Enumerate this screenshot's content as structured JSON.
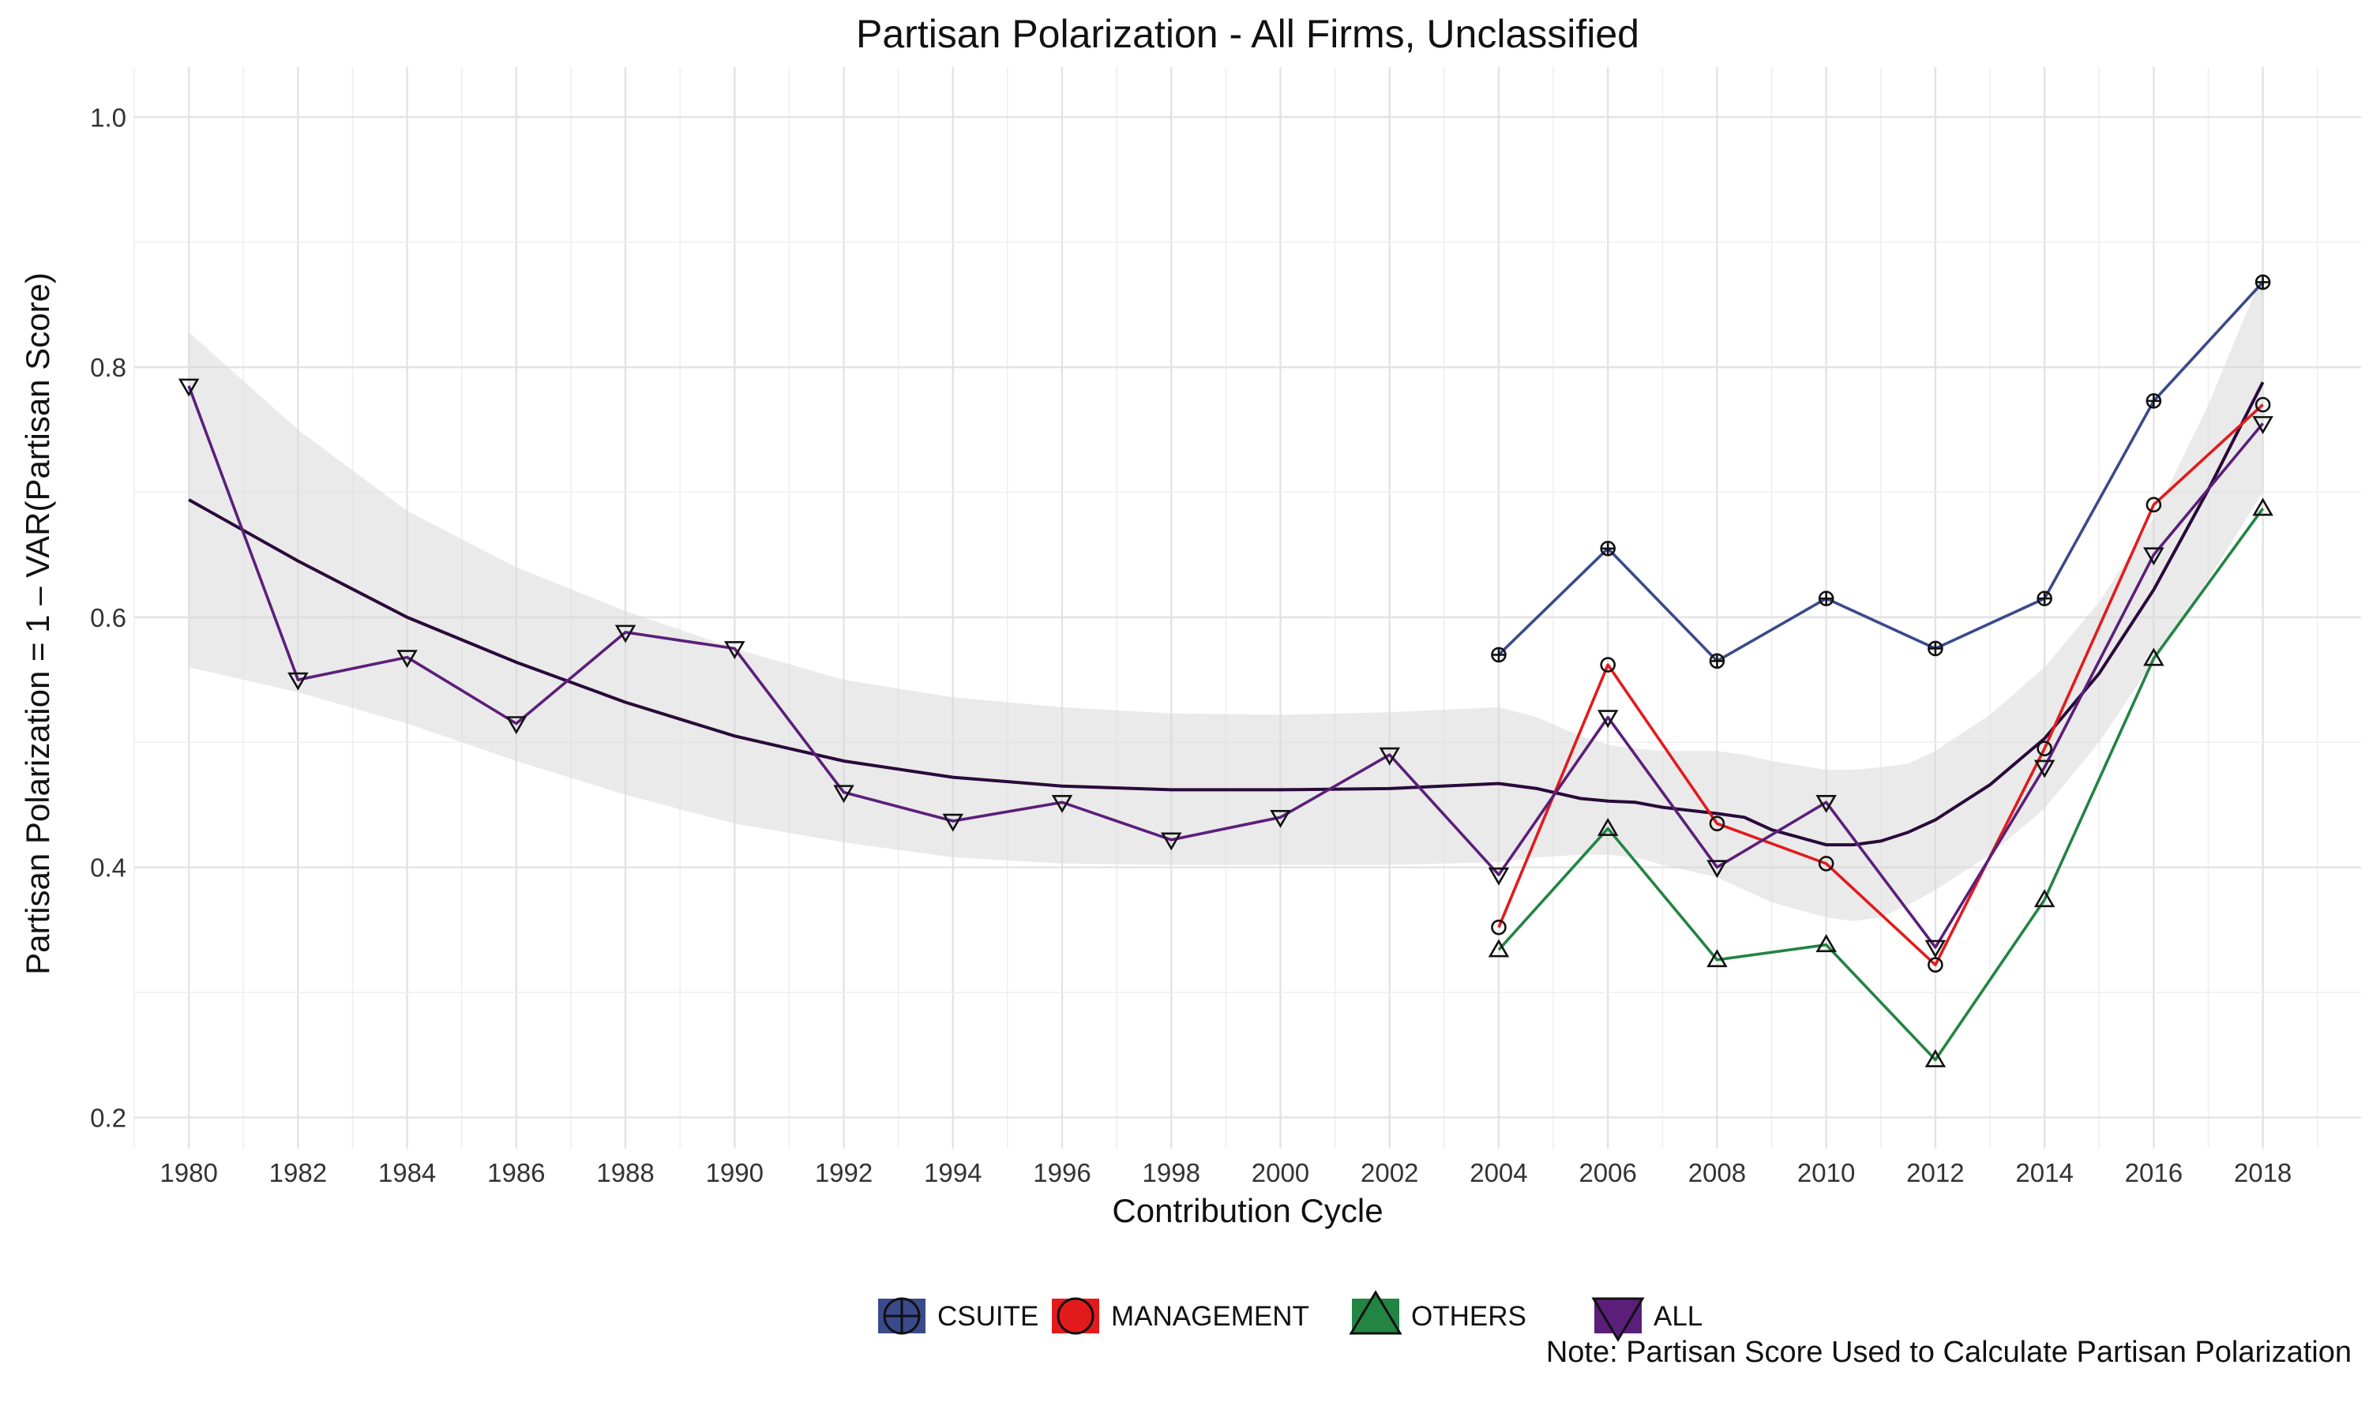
{
  "chart_data": {
    "type": "line",
    "title": "Partisan Polarization - All Firms, Unclassified",
    "xlabel": "Contribution Cycle",
    "ylabel": "Partisan Polarization = 1 – VAR(Partisan Score)",
    "note": "Note: Partisan Score Used to Calculate Partisan Polarization",
    "xlim": [
      1979,
      2019.8
    ],
    "ylim": [
      0.175,
      1.04
    ],
    "x_ticks": [
      1980,
      1982,
      1984,
      1986,
      1988,
      1990,
      1992,
      1994,
      1996,
      1998,
      2000,
      2002,
      2004,
      2006,
      2008,
      2010,
      2012,
      2014,
      2016,
      2018
    ],
    "y_ticks": [
      0.2,
      0.4,
      0.6,
      0.8,
      1.0
    ],
    "y_tick_labels": [
      "0.2",
      "0.4",
      "0.6",
      "0.8",
      "1.0"
    ],
    "grid": true,
    "legend_position": "bottom",
    "series": [
      {
        "name": "CSUITE",
        "color": "#3b4a8a",
        "marker": "circle-plus",
        "x": [
          2004,
          2006,
          2008,
          2010,
          2012,
          2014,
          2016,
          2018
        ],
        "values": [
          0.57,
          0.655,
          0.565,
          0.615,
          0.575,
          0.615,
          0.773,
          0.868
        ]
      },
      {
        "name": "MANAGEMENT",
        "color": "#e31a1c",
        "marker": "circle",
        "x": [
          2004,
          2006,
          2008,
          2010,
          2012,
          2014,
          2016,
          2018
        ],
        "values": [
          0.352,
          0.562,
          0.435,
          0.403,
          0.322,
          0.495,
          0.69,
          0.77
        ]
      },
      {
        "name": "OTHERS",
        "color": "#238443",
        "marker": "triangle-up",
        "x": [
          2004,
          2006,
          2008,
          2010,
          2012,
          2014,
          2016,
          2018
        ],
        "values": [
          0.334,
          0.431,
          0.326,
          0.338,
          0.246,
          0.374,
          0.567,
          0.687
        ]
      },
      {
        "name": "ALL",
        "color": "#5b1f7a",
        "marker": "triangle-down",
        "x": [
          1980,
          1982,
          1984,
          1986,
          1988,
          1990,
          1992,
          1994,
          1996,
          1998,
          2000,
          2002,
          2004,
          2006,
          2008,
          2010,
          2012,
          2014,
          2016,
          2018
        ],
        "values": [
          0.785,
          0.55,
          0.568,
          0.515,
          0.588,
          0.575,
          0.46,
          0.437,
          0.452,
          0.422,
          0.44,
          0.49,
          0.394,
          0.52,
          0.4,
          0.452,
          0.336,
          0.48,
          0.65,
          0.755
        ]
      }
    ],
    "smooth": {
      "color": "#2a0a3a",
      "band_color": "#d9d9d9",
      "x": [
        1980,
        1982,
        1984,
        1986,
        1988,
        1990,
        1992,
        1994,
        1996,
        1998,
        2000,
        2002,
        2004,
        2004.7,
        2005.5,
        2006,
        2006.5,
        2007,
        2008,
        2008.5,
        2009,
        2010,
        2010.5,
        2011,
        2011.5,
        2012,
        2013,
        2014,
        2015,
        2016,
        2017,
        2018
      ],
      "fit": [
        0.694,
        0.645,
        0.6,
        0.564,
        0.532,
        0.505,
        0.485,
        0.472,
        0.465,
        0.462,
        0.462,
        0.463,
        0.467,
        0.463,
        0.455,
        0.453,
        0.452,
        0.448,
        0.443,
        0.44,
        0.43,
        0.418,
        0.418,
        0.421,
        0.428,
        0.438,
        0.466,
        0.503,
        0.555,
        0.622,
        0.702,
        0.788
      ],
      "lower": [
        0.56,
        0.54,
        0.515,
        0.485,
        0.458,
        0.435,
        0.42,
        0.408,
        0.403,
        0.402,
        0.402,
        0.402,
        0.404,
        0.408,
        0.41,
        0.41,
        0.408,
        0.402,
        0.392,
        0.382,
        0.372,
        0.36,
        0.357,
        0.36,
        0.37,
        0.382,
        0.41,
        0.447,
        0.5,
        0.565,
        0.63,
        0.7
      ],
      "upper": [
        0.828,
        0.75,
        0.685,
        0.64,
        0.605,
        0.575,
        0.55,
        0.536,
        0.528,
        0.523,
        0.522,
        0.524,
        0.528,
        0.52,
        0.505,
        0.498,
        0.495,
        0.493,
        0.493,
        0.49,
        0.485,
        0.478,
        0.478,
        0.48,
        0.483,
        0.493,
        0.522,
        0.56,
        0.612,
        0.68,
        0.77,
        0.875
      ]
    }
  }
}
